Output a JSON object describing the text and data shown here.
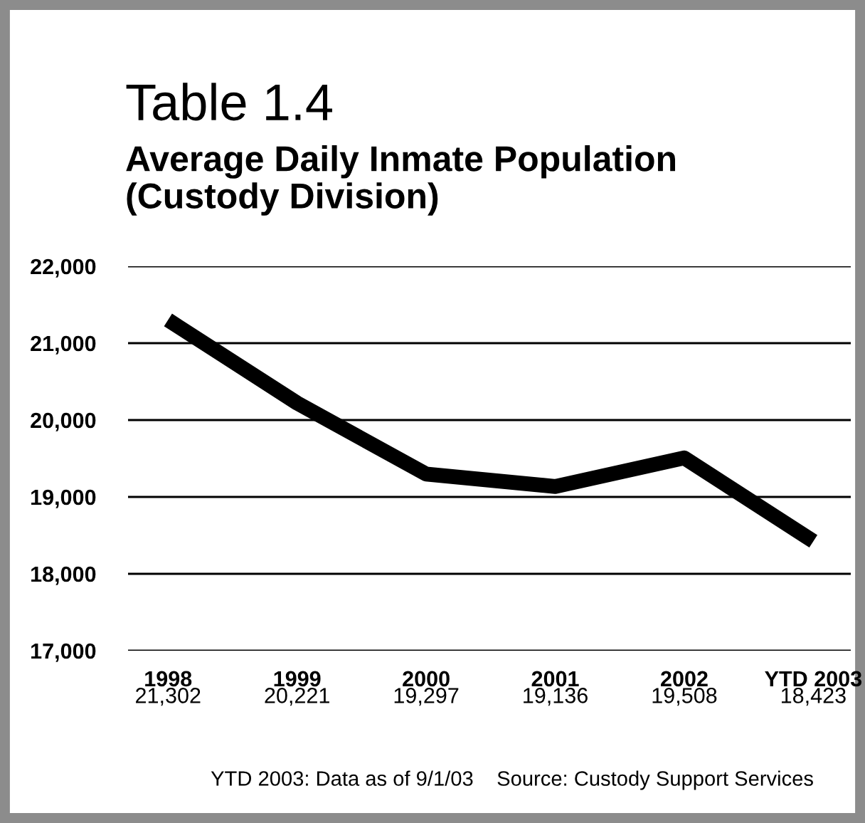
{
  "chart_data": {
    "type": "line",
    "title": "Table 1.4",
    "subtitle": "Average Daily Inmate Population\n(Custody Division)",
    "categories": [
      "1998",
      "1999",
      "2000",
      "2001",
      "2002",
      "YTD 2003"
    ],
    "values": [
      21302,
      20221,
      19297,
      19136,
      19508,
      18423
    ],
    "value_labels": [
      "21,302",
      "20,221",
      "19,297",
      "19,136",
      "19,508",
      "18,423"
    ],
    "color": "#000000",
    "ylim": [
      17000,
      22000
    ],
    "yticks": [
      {
        "value": 17000,
        "label": "17,000"
      },
      {
        "value": 18000,
        "label": "18,000"
      },
      {
        "value": 19000,
        "label": "19,000"
      },
      {
        "value": 20000,
        "label": "20,000"
      },
      {
        "value": 21000,
        "label": "21,000"
      },
      {
        "value": 22000,
        "label": "22,000"
      }
    ],
    "grid": "y",
    "marker": "none",
    "line_style": "solid",
    "annotations": [
      "YTD 2003: Data as of 9/1/03    Source: Custody Support Services"
    ]
  }
}
